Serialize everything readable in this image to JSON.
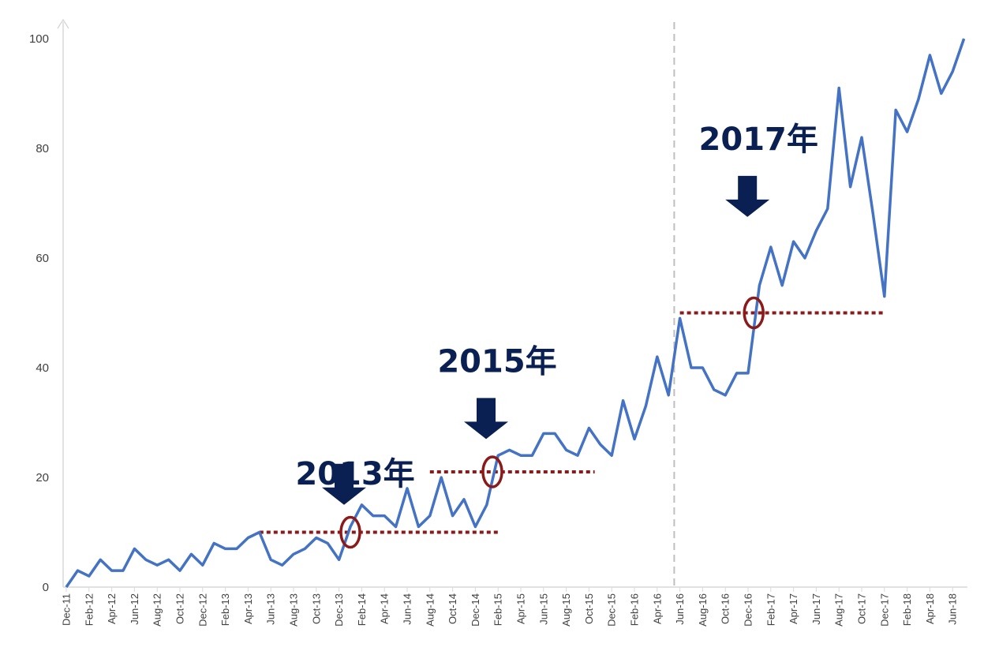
{
  "chart_data": {
    "type": "line",
    "ylim": [
      0,
      100
    ],
    "y_ticks": [
      "0",
      "20",
      "40",
      "60",
      "80",
      "100"
    ],
    "x_tick_labels": [
      "Dec-11",
      "Feb-12",
      "Apr-12",
      "Jun-12",
      "Aug-12",
      "Oct-12",
      "Dec-12",
      "Feb-13",
      "Apr-13",
      "Jun-13",
      "Aug-13",
      "Oct-13",
      "Dec-13",
      "Feb-14",
      "Apr-14",
      "Jun-14",
      "Aug-14",
      "Oct-14",
      "Dec-14",
      "Feb-15",
      "Apr-15",
      "Jun-15",
      "Aug-15",
      "Oct-15",
      "Dec-15",
      "Feb-16",
      "Apr-16",
      "Jun-16",
      "Aug-16",
      "Oct-16",
      "Dec-16",
      "Feb-17",
      "Apr-17",
      "Jun-17",
      "Aug-17",
      "Oct-17",
      "Dec-17",
      "Feb-18",
      "Apr-18",
      "Jun-18"
    ],
    "series": [
      {
        "color": "#4472c4",
        "values": [
          0,
          3,
          2,
          5,
          3,
          3,
          7,
          5,
          4,
          5,
          3,
          6,
          4,
          8,
          7,
          7,
          9,
          10,
          5,
          4,
          6,
          7,
          9,
          8,
          5,
          11,
          15,
          13,
          13,
          11,
          18,
          11,
          13,
          20,
          13,
          16,
          11,
          15,
          24,
          25,
          24,
          24,
          28,
          28,
          25,
          24,
          29,
          26,
          24,
          34,
          27,
          33,
          42,
          35,
          49,
          40,
          40,
          36,
          35,
          39,
          39,
          55,
          62,
          55,
          63,
          60,
          65,
          69,
          91,
          73,
          82,
          68,
          53,
          87,
          83,
          89,
          97,
          90,
          94,
          100
        ]
      }
    ],
    "annotations": [
      {
        "label": "2013年",
        "x_index": 25,
        "level": 10,
        "arrow_tip": 15,
        "label_y": 21,
        "range_start_index": 17,
        "range_end_index": 38
      },
      {
        "label": "2015年",
        "x_index": 37.5,
        "level": 21,
        "arrow_tip": 27,
        "label_y": 41.5,
        "range_start_index": 32,
        "range_end_index": 46.5
      },
      {
        "label": "2017年",
        "x_index": 60.5,
        "level": 50,
        "arrow_tip": 67.5,
        "label_y": 82,
        "range_start_index": 54,
        "range_end_index": 72
      }
    ],
    "vertical_line_index": 53.5,
    "colors": {
      "line": "#4472c4",
      "dashed": "#8b1a1a",
      "circle": "#8b1a1a",
      "arrow": "#0b2052",
      "axis": "#d9d9d9",
      "vline": "#bfbfbf"
    }
  }
}
